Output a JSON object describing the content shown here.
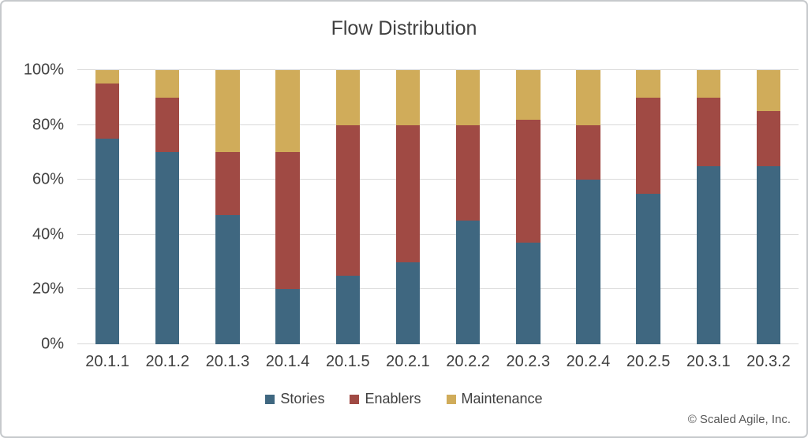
{
  "page": {
    "copyright": "© Scaled Agile, Inc."
  },
  "chart_data": {
    "type": "bar",
    "stacked": true,
    "title": "Flow Distribution",
    "categories": [
      "20.1.1",
      "20.1.2",
      "20.1.3",
      "20.1.4",
      "20.1.5",
      "20.2.1",
      "20.2.2",
      "20.2.3",
      "20.2.4",
      "20.2.5",
      "20.3.1",
      "20.3.2"
    ],
    "series": [
      {
        "name": "Stories",
        "color": "#3F6780",
        "values": [
          75,
          70,
          47,
          20,
          25,
          30,
          45,
          37,
          60,
          55,
          65,
          65
        ]
      },
      {
        "name": "Enablers",
        "color": "#A04A44",
        "values": [
          20,
          20,
          23,
          50,
          55,
          50,
          35,
          45,
          20,
          35,
          25,
          20
        ]
      },
      {
        "name": "Maintenance",
        "color": "#D0AC5A",
        "values": [
          5,
          10,
          30,
          30,
          20,
          20,
          20,
          18,
          20,
          10,
          10,
          15
        ]
      }
    ],
    "y_ticks": [
      "0%",
      "20%",
      "40%",
      "60%",
      "80%",
      "100%"
    ],
    "ylim": [
      0,
      100
    ],
    "grid": true,
    "gridline_color": "#d9d9d9",
    "text_color": "#404040",
    "legend_position": "bottom"
  }
}
